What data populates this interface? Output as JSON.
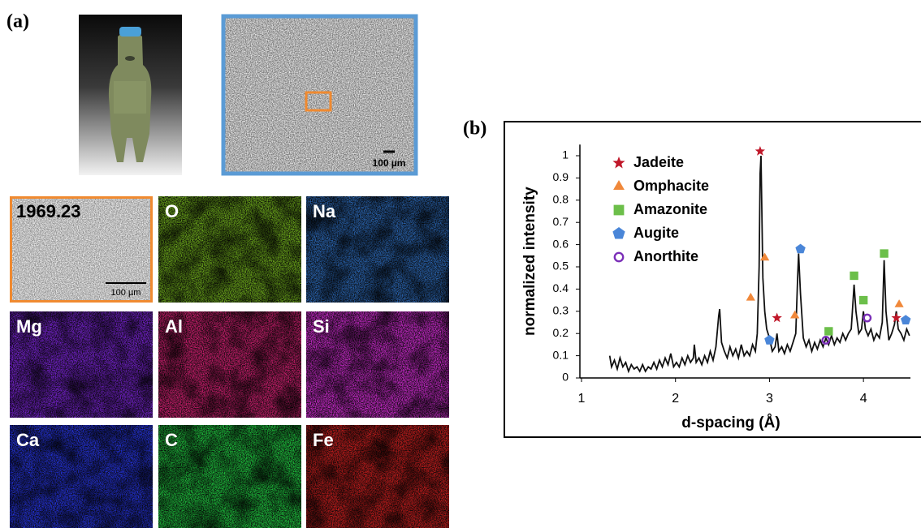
{
  "panel_a": {
    "label": "(a)",
    "sem_scale": "100 µm",
    "maps": [
      {
        "label": "1969.23",
        "color": "#cfcfcf",
        "scale": "100 µm"
      },
      {
        "label": "O",
        "color": "#6fae1a"
      },
      {
        "label": "Na",
        "color": "#2a68b8"
      },
      {
        "label": "Mg",
        "color": "#7a22d8"
      },
      {
        "label": "Al",
        "color": "#d41e72"
      },
      {
        "label": "Si",
        "color": "#d22ad4"
      },
      {
        "label": "Ca",
        "color": "#2432e0"
      },
      {
        "label": "C",
        "color": "#1ec83e"
      },
      {
        "label": "Fe",
        "color": "#cc1c1c"
      }
    ]
  },
  "chart_data": {
    "type": "line",
    "label": "(b)",
    "xlabel": "d-spacing (Å)",
    "ylabel": "normalized intensity",
    "xlim": [
      1,
      4.5
    ],
    "xticks": [
      1,
      2,
      3,
      4
    ],
    "ylim": [
      0,
      1.05
    ],
    "yticks": [
      0,
      0.1,
      0.2,
      0.3,
      0.4,
      0.5,
      0.6,
      0.7,
      0.8,
      0.9,
      1
    ],
    "spectrum": {
      "color": "#111111",
      "x": [
        1.3,
        1.32,
        1.35,
        1.38,
        1.41,
        1.44,
        1.47,
        1.5,
        1.53,
        1.56,
        1.59,
        1.62,
        1.65,
        1.68,
        1.71,
        1.74,
        1.77,
        1.8,
        1.83,
        1.86,
        1.89,
        1.92,
        1.95,
        1.98,
        2.01,
        2.04,
        2.07,
        2.1,
        2.13,
        2.16,
        2.19,
        2.2,
        2.22,
        2.25,
        2.28,
        2.31,
        2.34,
        2.37,
        2.4,
        2.43,
        2.46,
        2.47,
        2.49,
        2.52,
        2.55,
        2.58,
        2.61,
        2.64,
        2.67,
        2.7,
        2.73,
        2.76,
        2.79,
        2.82,
        2.85,
        2.87,
        2.89,
        2.9,
        2.91,
        2.93,
        2.95,
        2.97,
        3.0,
        3.03,
        3.06,
        3.08,
        3.1,
        3.13,
        3.16,
        3.19,
        3.22,
        3.25,
        3.28,
        3.3,
        3.31,
        3.33,
        3.36,
        3.39,
        3.42,
        3.45,
        3.48,
        3.51,
        3.54,
        3.57,
        3.6,
        3.63,
        3.66,
        3.69,
        3.72,
        3.75,
        3.78,
        3.81,
        3.84,
        3.87,
        3.89,
        3.9,
        3.92,
        3.95,
        3.98,
        4.0,
        4.02,
        4.05,
        4.08,
        4.11,
        4.14,
        4.17,
        4.2,
        4.22,
        4.24,
        4.27,
        4.3,
        4.33,
        4.35,
        4.37,
        4.4,
        4.43,
        4.46,
        4.49
      ],
      "values": [
        0.1,
        0.05,
        0.08,
        0.04,
        0.09,
        0.05,
        0.07,
        0.03,
        0.06,
        0.04,
        0.05,
        0.03,
        0.06,
        0.03,
        0.05,
        0.04,
        0.07,
        0.04,
        0.08,
        0.05,
        0.09,
        0.06,
        0.11,
        0.05,
        0.07,
        0.05,
        0.09,
        0.06,
        0.1,
        0.07,
        0.09,
        0.15,
        0.07,
        0.09,
        0.06,
        0.1,
        0.07,
        0.12,
        0.08,
        0.14,
        0.28,
        0.31,
        0.16,
        0.12,
        0.09,
        0.14,
        0.1,
        0.13,
        0.09,
        0.15,
        0.1,
        0.12,
        0.1,
        0.15,
        0.12,
        0.2,
        0.5,
        0.92,
        1.0,
        0.45,
        0.3,
        0.22,
        0.18,
        0.12,
        0.14,
        0.2,
        0.12,
        0.14,
        0.11,
        0.15,
        0.12,
        0.16,
        0.2,
        0.45,
        0.56,
        0.38,
        0.18,
        0.14,
        0.17,
        0.12,
        0.16,
        0.13,
        0.17,
        0.14,
        0.18,
        0.15,
        0.19,
        0.15,
        0.18,
        0.16,
        0.2,
        0.17,
        0.2,
        0.22,
        0.35,
        0.42,
        0.3,
        0.2,
        0.22,
        0.3,
        0.22,
        0.19,
        0.22,
        0.17,
        0.2,
        0.18,
        0.25,
        0.53,
        0.3,
        0.17,
        0.2,
        0.24,
        0.3,
        0.22,
        0.2,
        0.17,
        0.22,
        0.19
      ]
    },
    "series": [
      {
        "name": "Jadeite",
        "color": "#c0182a",
        "marker": "star",
        "x": [
          2.9,
          3.08,
          4.35
        ],
        "values": [
          1.02,
          0.27,
          0.27
        ]
      },
      {
        "name": "Omphacite",
        "color": "#f0883a",
        "marker": "triangle",
        "x": [
          2.8,
          2.95,
          3.27,
          4.38
        ],
        "values": [
          0.36,
          0.54,
          0.28,
          0.33
        ]
      },
      {
        "name": "Amazonite",
        "color": "#6cbf4a",
        "marker": "square",
        "x": [
          3.63,
          3.9,
          4.0,
          4.22
        ],
        "values": [
          0.21,
          0.46,
          0.35,
          0.56
        ]
      },
      {
        "name": "Augite",
        "color": "#4a86d8",
        "marker": "pentagon",
        "x": [
          3.0,
          3.33,
          4.45
        ],
        "values": [
          0.17,
          0.58,
          0.26
        ]
      },
      {
        "name": "Anorthite",
        "color": "#7b2fb8",
        "marker": "circle",
        "x": [
          3.6,
          4.04
        ],
        "values": [
          0.17,
          0.27
        ]
      }
    ]
  }
}
